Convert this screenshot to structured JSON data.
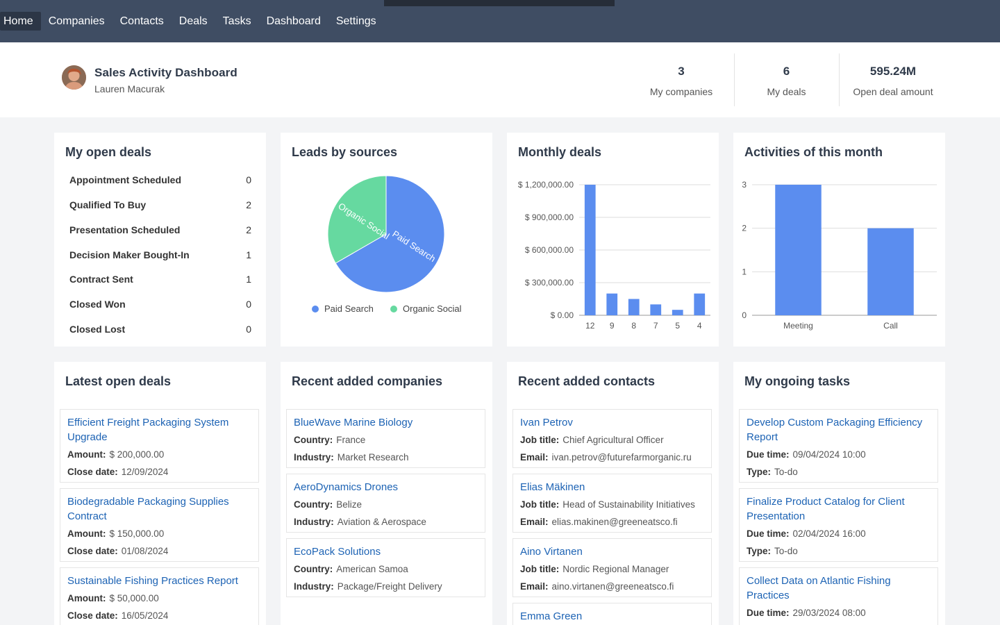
{
  "nav": {
    "items": [
      "Home",
      "Companies",
      "Contacts",
      "Deals",
      "Tasks",
      "Dashboard",
      "Settings"
    ]
  },
  "header": {
    "title": "Sales Activity Dashboard",
    "user": "Lauren Macurak",
    "stats": [
      {
        "value": "3",
        "label": "My companies"
      },
      {
        "value": "6",
        "label": "My deals"
      },
      {
        "value": "595.24M",
        "label": "Open deal amount"
      }
    ]
  },
  "open_deals": {
    "title": "My open deals",
    "rows": [
      {
        "stage": "Appointment Scheduled",
        "count": "0"
      },
      {
        "stage": "Qualified To Buy",
        "count": "2"
      },
      {
        "stage": "Presentation Scheduled",
        "count": "2"
      },
      {
        "stage": "Decision Maker Bought-In",
        "count": "1"
      },
      {
        "stage": "Contract Sent",
        "count": "1"
      },
      {
        "stage": "Closed Won",
        "count": "0"
      },
      {
        "stage": "Closed Lost",
        "count": "0"
      }
    ]
  },
  "leads": {
    "title": "Leads by sources",
    "legend": [
      "Paid Search",
      "Organic Social"
    ]
  },
  "monthly": {
    "title": "Monthly deals"
  },
  "activities": {
    "title": "Activities of this month"
  },
  "chart_data": [
    {
      "type": "pie",
      "labels": [
        "Paid Search",
        "Organic Social"
      ],
      "values": [
        2,
        1
      ],
      "colors": [
        "#5b8def",
        "#66d9a0"
      ],
      "legend": "bottom"
    },
    {
      "type": "bar",
      "categories": [
        "12",
        "9",
        "8",
        "7",
        "5",
        "4"
      ],
      "values": [
        1200000,
        200000,
        150000,
        100000,
        50000,
        200000
      ],
      "yticks": [
        "$ 1,200,000.00",
        "$ 900,000.00",
        "$ 600,000.00",
        "$ 300,000.00",
        "$ 0.00"
      ],
      "ylim": [
        0,
        1200000
      ],
      "color": "#5b8def",
      "grid": true
    },
    {
      "type": "bar",
      "categories": [
        "Meeting",
        "Call"
      ],
      "values": [
        3,
        2
      ],
      "yticks": [
        "3",
        "2",
        "1",
        "0"
      ],
      "ylim": [
        0,
        3
      ],
      "color": "#5b8def",
      "grid": true
    }
  ],
  "latest_deals": {
    "title": "Latest open deals",
    "amount_label": "Amount:",
    "close_label": "Close date:",
    "items": [
      {
        "name": "Efficient Freight Packaging System Upgrade",
        "amount": "$ 200,000.00",
        "close": "12/09/2024"
      },
      {
        "name": "Biodegradable Packaging Supplies Contract",
        "amount": "$ 150,000.00",
        "close": "01/08/2024"
      },
      {
        "name": "Sustainable Fishing Practices Report",
        "amount": "$ 50,000.00",
        "close": "16/05/2024"
      }
    ]
  },
  "companies": {
    "title": "Recent added companies",
    "country_label": "Country:",
    "industry_label": "Industry:",
    "items": [
      {
        "name": "BlueWave Marine Biology",
        "country": "France",
        "industry": "Market Research"
      },
      {
        "name": "AeroDynamics Drones",
        "country": "Belize",
        "industry": "Aviation & Aerospace"
      },
      {
        "name": "EcoPack Solutions",
        "country": "American Samoa",
        "industry": "Package/Freight Delivery"
      }
    ]
  },
  "contacts": {
    "title": "Recent added contacts",
    "job_label": "Job title:",
    "email_label": "Email:",
    "items": [
      {
        "name": "Ivan Petrov",
        "job": "Chief Agricultural Officer",
        "email": "ivan.petrov@futurefarmorganic.ru"
      },
      {
        "name": "Elias Mäkinen",
        "job": "Head of Sustainability Initiatives",
        "email": "elias.makinen@greeneatsco.fi"
      },
      {
        "name": "Aino Virtanen",
        "job": "Nordic Regional Manager",
        "email": "aino.virtanen@greeneatsco.fi"
      },
      {
        "name": "Emma Green"
      }
    ]
  },
  "tasks": {
    "title": "My ongoing tasks",
    "due_label": "Due time:",
    "type_label": "Type:",
    "items": [
      {
        "name": "Develop Custom Packaging Efficiency Report",
        "due": "09/04/2024 10:00",
        "type": "To-do"
      },
      {
        "name": "Finalize Product Catalog for Client Presentation",
        "due": "02/04/2024 16:00",
        "type": "To-do"
      },
      {
        "name": "Collect Data on Atlantic Fishing Practices",
        "due": "29/03/2024 08:00"
      }
    ]
  }
}
